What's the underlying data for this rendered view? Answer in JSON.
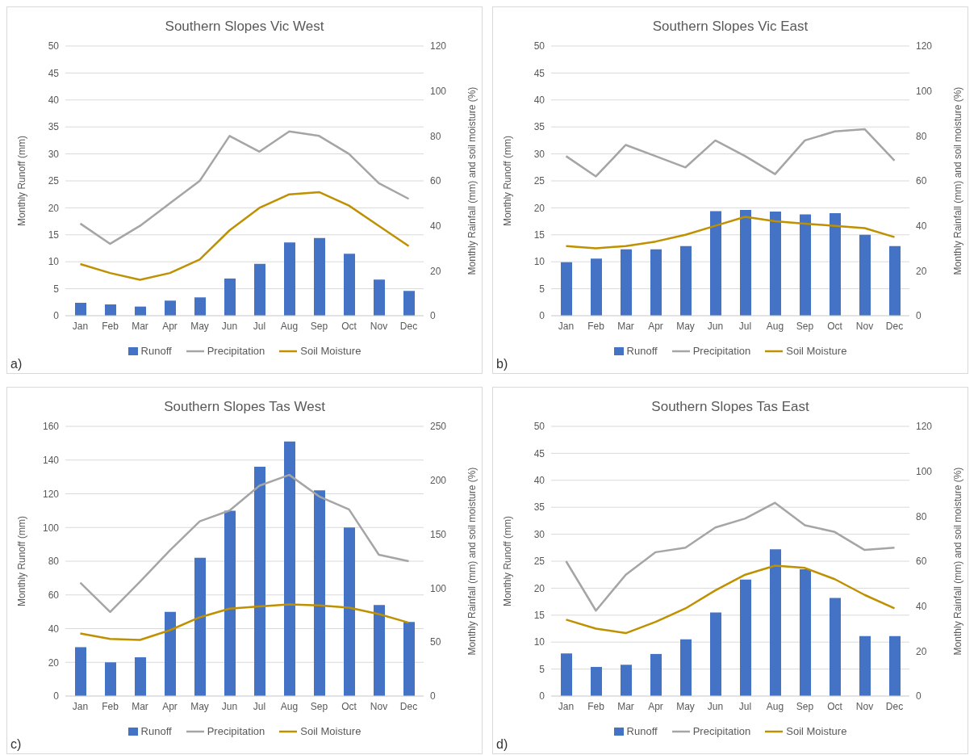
{
  "chart_data": [
    {
      "type": "bar",
      "title": "Southern Slopes Vic West",
      "categories": [
        "Jan",
        "Feb",
        "Mar",
        "Apr",
        "May",
        "Jun",
        "Jul",
        "Aug",
        "Sep",
        "Oct",
        "Nov",
        "Dec"
      ],
      "ylabel": "Monthly Runoff (mm)",
      "y2label": "Monthly Rainfall (mm) and soil moisture (%)",
      "ylim": [
        0,
        50
      ],
      "yticks": [
        0,
        5,
        10,
        15,
        20,
        25,
        30,
        35,
        40,
        45,
        50
      ],
      "y2lim": [
        0,
        120
      ],
      "y2ticks": [
        0,
        20,
        40,
        60,
        80,
        100,
        120
      ],
      "grid": "y",
      "legend": "bottom",
      "marker": "none",
      "annotations": [
        "a)"
      ],
      "series": [
        {
          "name": "Runoff",
          "color": "#4472c4",
          "values": [
            2.4,
            2.1,
            1.7,
            2.8,
            3.4,
            6.9,
            9.6,
            13.6,
            14.4,
            11.5,
            6.7,
            4.6
          ]
        },
        {
          "name": "Precipitation",
          "type": "line",
          "axis": "y2",
          "color": "#a5a5a5",
          "values": [
            41,
            32,
            40,
            50,
            60,
            80,
            73,
            82,
            80,
            72,
            59,
            52
          ]
        },
        {
          "name": "Soil Moisture",
          "type": "line",
          "axis": "y2",
          "color": "#bf9000",
          "values": [
            23,
            19,
            16,
            19,
            25,
            38,
            48,
            54,
            55,
            49,
            40,
            31
          ]
        }
      ]
    },
    {
      "type": "bar",
      "title": "Southern Slopes Vic East",
      "categories": [
        "Jan",
        "Feb",
        "Mar",
        "Apr",
        "May",
        "Jun",
        "Jul",
        "Aug",
        "Sep",
        "Oct",
        "Nov",
        "Dec"
      ],
      "ylabel": "Monthly Runoff (mm)",
      "y2label": "Monthly Rainfall (mm) and soil moisture (%)",
      "ylim": [
        0,
        50
      ],
      "yticks": [
        0,
        5,
        10,
        15,
        20,
        25,
        30,
        35,
        40,
        45,
        50
      ],
      "y2lim": [
        0,
        120
      ],
      "y2ticks": [
        0,
        20,
        40,
        60,
        80,
        100,
        120
      ],
      "grid": "y",
      "legend": "bottom",
      "marker": "none",
      "annotations": [
        "b)"
      ],
      "series": [
        {
          "name": "Runoff",
          "color": "#4472c4",
          "values": [
            9.9,
            10.6,
            12.3,
            12.3,
            12.9,
            19.4,
            19.6,
            19.3,
            18.8,
            19,
            15,
            12.9
          ]
        },
        {
          "name": "Precipitation",
          "type": "line",
          "axis": "y2",
          "color": "#a5a5a5",
          "values": [
            71,
            62,
            76,
            71,
            66,
            78,
            71,
            63,
            78,
            82,
            83,
            69
          ]
        },
        {
          "name": "Soil Moisture",
          "type": "line",
          "axis": "y2",
          "color": "#bf9000",
          "values": [
            31,
            30,
            31,
            33,
            36,
            40,
            44,
            42,
            41,
            40,
            39,
            35
          ]
        }
      ]
    },
    {
      "type": "bar",
      "title": "Southern Slopes Tas West",
      "categories": [
        "Jan",
        "Feb",
        "Mar",
        "Apr",
        "May",
        "Jun",
        "Jul",
        "Aug",
        "Sep",
        "Oct",
        "Nov",
        "Dec"
      ],
      "ylabel": "Monthly Runoff (mm)",
      "y2label": "Monthly Rainfall (mm) and soil moisture (%)",
      "ylim": [
        0,
        160
      ],
      "yticks": [
        0,
        20,
        40,
        60,
        80,
        100,
        120,
        140,
        160
      ],
      "y2lim": [
        0,
        250
      ],
      "y2ticks": [
        0,
        50,
        100,
        150,
        200,
        250
      ],
      "grid": "y",
      "legend": "bottom",
      "marker": "none",
      "annotations": [
        "c)"
      ],
      "series": [
        {
          "name": "Runoff",
          "color": "#4472c4",
          "values": [
            29,
            20,
            23,
            50,
            82,
            110,
            136,
            151,
            122,
            100,
            54,
            44
          ]
        },
        {
          "name": "Precipitation",
          "type": "line",
          "axis": "y2",
          "color": "#a5a5a5",
          "values": [
            105,
            78,
            106,
            135,
            162,
            172,
            195,
            205,
            185,
            173,
            131,
            125
          ]
        },
        {
          "name": "Soil Moisture",
          "type": "line",
          "axis": "y2",
          "color": "#bf9000",
          "values": [
            58,
            53,
            52,
            61,
            73,
            81,
            83,
            85,
            84,
            82,
            76,
            68
          ]
        }
      ]
    },
    {
      "type": "bar",
      "title": "Southern Slopes Tas East",
      "categories": [
        "Jan",
        "Feb",
        "Mar",
        "Apr",
        "May",
        "Jun",
        "Jul",
        "Aug",
        "Sep",
        "Oct",
        "Nov",
        "Dec"
      ],
      "ylabel": "Monthly Runoff (mm)",
      "y2label": "Monthly Rainfall (mm) and soil moisture (%)",
      "ylim": [
        0,
        50
      ],
      "yticks": [
        0,
        5,
        10,
        15,
        20,
        25,
        30,
        35,
        40,
        45,
        50
      ],
      "y2lim": [
        0,
        120
      ],
      "y2ticks": [
        0,
        20,
        40,
        60,
        80,
        100,
        120
      ],
      "grid": "y",
      "legend": "bottom",
      "marker": "none",
      "annotations": [
        "d)"
      ],
      "series": [
        {
          "name": "Runoff",
          "color": "#4472c4",
          "values": [
            7.9,
            5.4,
            5.8,
            7.8,
            10.5,
            15.5,
            21.6,
            27.2,
            23.5,
            18.2,
            11.1,
            11.1
          ]
        },
        {
          "name": "Precipitation",
          "type": "line",
          "axis": "y2",
          "color": "#a5a5a5",
          "values": [
            60,
            38,
            54,
            64,
            66,
            75,
            79,
            86,
            76,
            73,
            65,
            66
          ]
        },
        {
          "name": "Soil Moisture",
          "type": "line",
          "axis": "y2",
          "color": "#bf9000",
          "values": [
            34,
            30,
            28,
            33,
            39,
            47,
            54,
            58,
            57,
            52,
            45,
            39
          ]
        }
      ]
    }
  ]
}
